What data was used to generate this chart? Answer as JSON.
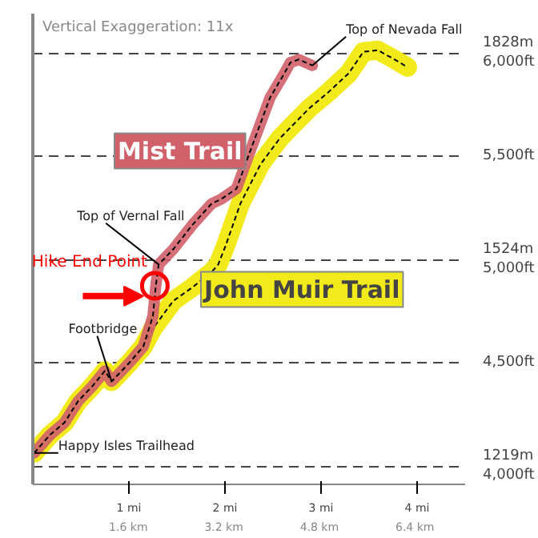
{
  "chart_data": {
    "type": "line",
    "series": [
      {
        "name": "Mist Trail",
        "color": "#d0606a",
        "x": [
          0.015,
          0.18,
          0.33,
          0.47,
          0.62,
          0.75,
          0.82,
          1.0,
          1.15,
          1.25,
          1.28,
          1.31,
          1.46,
          1.66,
          1.86,
          1.96,
          2.12,
          2.27,
          2.47,
          2.62,
          2.68,
          2.77,
          2.91
        ],
        "values": [
          4064,
          4152,
          4211,
          4314,
          4387,
          4461,
          4410,
          4498,
          4579,
          4726,
          4873,
          4976,
          5049,
          5167,
          5270,
          5292,
          5343,
          5534,
          5784,
          5902,
          5953,
          5968,
          5939
        ]
      },
      {
        "name": "John Muir Trail",
        "color": "#f2ea1a",
        "x": [
          0.015,
          0.18,
          0.33,
          0.47,
          0.62,
          0.75,
          0.82,
          1.0,
          1.15,
          1.25,
          1.46,
          1.66,
          1.86,
          1.93,
          2.01,
          2.16,
          2.37,
          2.57,
          2.88,
          3.07,
          3.29,
          3.44,
          3.59,
          3.74,
          3.9
        ],
        "values": [
          4064,
          4152,
          4211,
          4314,
          4387,
          4461,
          4410,
          4498,
          4579,
          4666,
          4799,
          4865,
          4939,
          4976,
          5071,
          5270,
          5461,
          5586,
          5733,
          5807,
          5902,
          6005,
          6013,
          5975,
          5931
        ]
      }
    ],
    "xlim": [
      0,
      4.5
    ],
    "ylim": [
      3912,
      6190
    ],
    "xticks": [
      {
        "value": 1,
        "label": "1 mi"
      },
      {
        "value": 2,
        "label": "2 mi"
      },
      {
        "value": 3,
        "label": "3 mi"
      },
      {
        "value": 4,
        "label": "4 mi"
      }
    ],
    "x2lim": [
      0,
      7.242
    ],
    "x2ticks": [
      {
        "value": 1.6,
        "label": "1.6 km"
      },
      {
        "value": 3.2,
        "label": "3.2 km"
      },
      {
        "value": 4.8,
        "label": "4.8 km"
      },
      {
        "value": 6.4,
        "label": "6.4 km"
      }
    ],
    "yticks": [
      {
        "value": 4000,
        "label": "1219m\n4,000ft"
      },
      {
        "value": 4500,
        "label": "4,500ft"
      },
      {
        "value": 5000,
        "label": "1524m\n5,000ft"
      },
      {
        "value": 5500,
        "label": "5,500ft"
      },
      {
        "value": 6000,
        "label": "1828m\n6,000ft"
      }
    ],
    "grid": "y",
    "line_style": "solid",
    "marker": "none",
    "annotations": [
      "Vertical Exaggeration: 11x",
      {
        "text": "Top of Nevada Fall",
        "x": 2.91,
        "y": 5939
      },
      {
        "text": "Top of Vernal Fall",
        "x": 1.31,
        "y": 4976
      },
      {
        "text": "Hike End Point",
        "x": 1.27,
        "y": 4873
      },
      {
        "text": "Footbridge",
        "x": 0.82,
        "y": 4410
      },
      {
        "text": "Happy Isles Trailhead",
        "x": 0.015,
        "y": 4064
      }
    ]
  }
}
